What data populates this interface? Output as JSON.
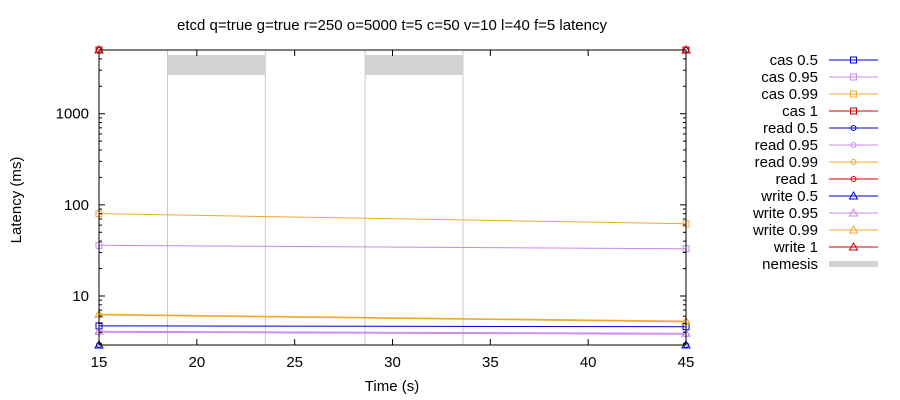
{
  "chart_data": {
    "type": "line",
    "title": "etcd q=true g=true r=250 o=5000 t=5 c=50 v=10 l=40 f=5 latency",
    "xlabel": "Time (s)",
    "ylabel": "Latency (ms)",
    "xlim": [
      15,
      45
    ],
    "ylim": [
      2.9,
      5000
    ],
    "yscale": "log",
    "x_ticks": [
      15,
      20,
      25,
      30,
      35,
      40,
      45
    ],
    "y_ticks": [
      10,
      100,
      1000
    ],
    "grid": false,
    "legend_position": "right",
    "nemesis": {
      "label": "nemesis",
      "color": "#d3d3d3",
      "intervals": [
        [
          18.5,
          23.5
        ],
        [
          28.6,
          33.6
        ]
      ]
    },
    "series": [
      {
        "name": "cas 0.5",
        "color": "#0000cc",
        "marker": "square",
        "x": [
          15,
          45
        ],
        "y": [
          4.7,
          4.6
        ]
      },
      {
        "name": "cas 0.95",
        "color": "#cc88ee",
        "marker": "square",
        "x": [
          15,
          45
        ],
        "y": [
          36,
          33
        ]
      },
      {
        "name": "cas 0.99",
        "color": "#f0a830",
        "marker": "square",
        "x": [
          15,
          45
        ],
        "y": [
          80,
          62
        ]
      },
      {
        "name": "cas 1",
        "color": "#cc0000",
        "marker": "square",
        "x": [
          15,
          45
        ],
        "y": [
          5000,
          5000
        ]
      },
      {
        "name": "read 0.5",
        "color": "#0000cc",
        "marker": "circle",
        "x": [
          15,
          45
        ],
        "y": [
          2.9,
          2.9
        ]
      },
      {
        "name": "read 0.95",
        "color": "#cc88ee",
        "marker": "circle",
        "x": [
          15,
          45
        ],
        "y": [
          4.0,
          3.8
        ]
      },
      {
        "name": "read 0.99",
        "color": "#f0a830",
        "marker": "circle",
        "x": [
          15,
          45
        ],
        "y": [
          6.2,
          5.2
        ]
      },
      {
        "name": "read 1",
        "color": "#cc0000",
        "marker": "circle",
        "x": [
          15,
          45
        ],
        "y": [
          5000,
          5000
        ]
      },
      {
        "name": "write 0.5",
        "color": "#0000cc",
        "marker": "triangle",
        "x": [
          15,
          45
        ],
        "y": [
          2.9,
          2.9
        ]
      },
      {
        "name": "write 0.95",
        "color": "#cc88ee",
        "marker": "triangle",
        "x": [
          15,
          45
        ],
        "y": [
          4.1,
          3.9
        ]
      },
      {
        "name": "write 0.99",
        "color": "#f0a830",
        "marker": "triangle",
        "x": [
          15,
          45
        ],
        "y": [
          6.3,
          5.3
        ]
      },
      {
        "name": "write 1",
        "color": "#cc0000",
        "marker": "triangle",
        "x": [
          15,
          45
        ],
        "y": [
          5000,
          5000
        ]
      }
    ]
  }
}
